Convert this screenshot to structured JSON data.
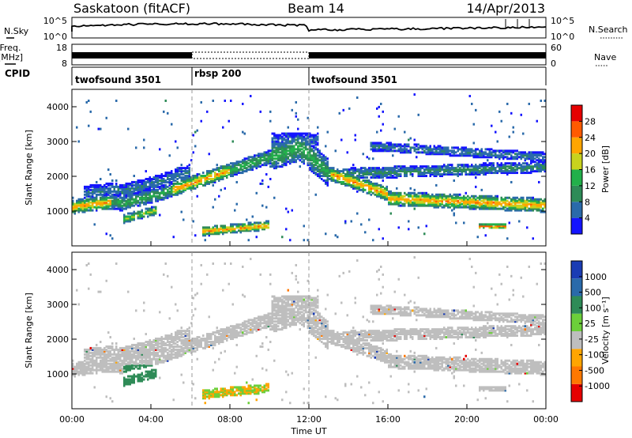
{
  "header": {
    "station": "Saskatoon (fitACF)",
    "beam": "Beam 14",
    "date": "14/Apr/2013"
  },
  "side_labels": {
    "nsky": "N.Sky",
    "freq_line1": "Freq.",
    "freq_line2": "[MHz]",
    "cpid": "CPID",
    "nsearch": "N.Search",
    "nave": "Nave"
  },
  "nsky_panel": {
    "left_ticks": [
      "10^5",
      "10^0"
    ],
    "right_ticks": [
      "10^5",
      "10^0"
    ]
  },
  "freq_panel": {
    "left_ticks": [
      "18",
      "8"
    ],
    "right_ticks": [
      "60",
      "0"
    ]
  },
  "colors": {
    "power": [
      "#1414ff",
      "#2a6aaa",
      "#2e8b57",
      "#22b04a",
      "#c8d21e",
      "#ffa500",
      "#ff5a00",
      "#e60000"
    ],
    "velocity": [
      "#1a3cb4",
      "#2a6aaa",
      "#2e8b57",
      "#6ccf3a",
      "#bebebe",
      "#ffa500",
      "#ff7800",
      "#e60000"
    ]
  },
  "chart_data": [
    {
      "type": "heatmap",
      "name": "power",
      "ylabel": "Slant Range [km]",
      "ylim": [
        0,
        4500
      ],
      "yticks": [
        "1000",
        "2000",
        "3000",
        "4000"
      ],
      "xlim_hours": [
        0,
        24
      ],
      "colorbar_label": "Power [dB]",
      "colorbar_ticks": [
        "28",
        "24",
        "20",
        "16",
        "12",
        "8",
        "4"
      ],
      "colorbar_range": [
        0,
        32
      ],
      "cpid_segments": [
        {
          "label": "twofsound 3501",
          "start": 0,
          "end": 6
        },
        {
          "label": "rbsp 200",
          "start": 6,
          "end": 12
        },
        {
          "label": "twofsound 3501",
          "start": 12,
          "end": 24
        }
      ]
    },
    {
      "type": "heatmap",
      "name": "velocity",
      "ylabel": "Slant Range [km]",
      "ylim": [
        0,
        4500
      ],
      "yticks": [
        "1000",
        "2000",
        "3000",
        "4000"
      ],
      "xlabel": "Time UT",
      "xticks": [
        "00:00",
        "04:00",
        "08:00",
        "12:00",
        "16:00",
        "20:00",
        "00:00"
      ],
      "xlim_hours": [
        0,
        24
      ],
      "colorbar_label": "Velocity [m s⁻¹]",
      "colorbar_ticks": [
        "1000",
        "500",
        "100",
        "25",
        "-25",
        "-100",
        "-500",
        "-1000"
      ]
    }
  ]
}
